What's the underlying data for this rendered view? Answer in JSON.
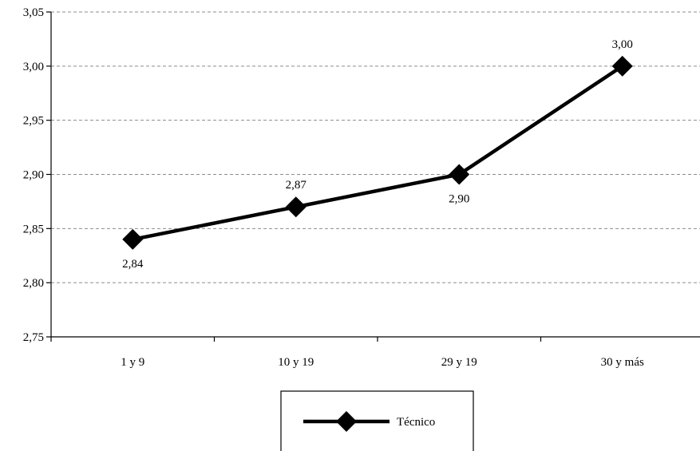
{
  "chart_data": {
    "type": "line",
    "categories": [
      "1 y 9",
      "10 y 19",
      "29 y 19",
      "30 y más"
    ],
    "series": [
      {
        "name": "Técnico",
        "values": [
          2.84,
          2.87,
          2.9,
          3.0
        ],
        "labels": [
          "2,84",
          "2,87",
          "2,90",
          "3,00"
        ],
        "label_positions": [
          "below",
          "above",
          "below",
          "above"
        ],
        "color": "#000000",
        "marker": "diamond"
      }
    ],
    "ylim": [
      2.75,
      3.05
    ],
    "yticks": [
      2.75,
      2.8,
      2.85,
      2.9,
      2.95,
      3.0,
      3.05
    ],
    "ytick_labels": [
      "2,75",
      "2,80",
      "2,85",
      "2,90",
      "2,95",
      "3,00",
      "3,05"
    ],
    "grid": "horizontal-dashed",
    "legend_position": "bottom-center",
    "title": "",
    "xlabel": "",
    "ylabel": ""
  }
}
